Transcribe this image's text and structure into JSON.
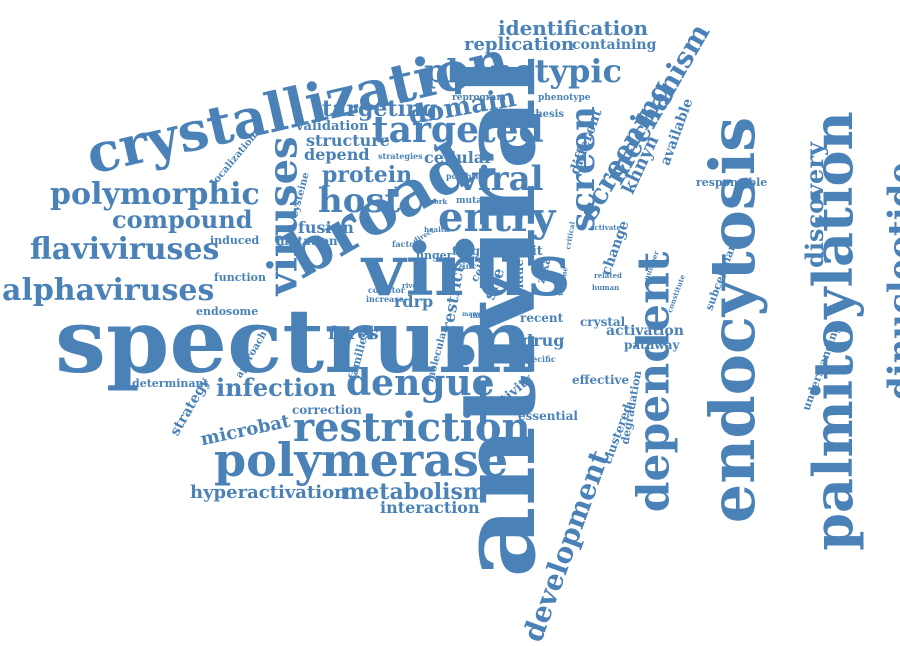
{
  "word_cloud": {
    "color": "#4a82b7",
    "background": "#ffffff",
    "words": [
      {
        "text": "antiviral",
        "orientation": "vertical-up"
      },
      {
        "text": "spectrum",
        "orientation": "horizontal"
      },
      {
        "text": "virus",
        "orientation": "horizontal"
      },
      {
        "text": "broad",
        "orientation": "rotated"
      },
      {
        "text": "endocytosis",
        "orientation": "vertical-up"
      },
      {
        "text": "palmitoylation",
        "orientation": "vertical-up"
      },
      {
        "text": "crystallization",
        "orientation": "horizontal-angled"
      },
      {
        "text": "dependent",
        "orientation": "vertical-up"
      },
      {
        "text": "polymerase",
        "orientation": "horizontal"
      },
      {
        "text": "restriction",
        "orientation": "horizontal"
      },
      {
        "text": "entry",
        "orientation": "horizontal"
      },
      {
        "text": "viruses",
        "orientation": "vertical-up"
      },
      {
        "text": "dengue",
        "orientation": "horizontal"
      },
      {
        "text": "dinucleotide",
        "orientation": "vertical-up"
      },
      {
        "text": "discovery",
        "orientation": "vertical-up"
      },
      {
        "text": "screen",
        "orientation": "vertical-up"
      },
      {
        "text": "screening",
        "orientation": "vertical-up"
      },
      {
        "text": "mechanism",
        "orientation": "vertical-up"
      },
      {
        "text": "development",
        "orientation": "vertical-up"
      },
      {
        "text": "polymorphic",
        "orientation": "horizontal"
      },
      {
        "text": "flaviviruses",
        "orientation": "horizontal"
      },
      {
        "text": "alphaviruses",
        "orientation": "horizontal"
      },
      {
        "text": "compound",
        "orientation": "horizontal"
      },
      {
        "text": "host",
        "orientation": "horizontal"
      },
      {
        "text": "viral",
        "orientation": "horizontal"
      },
      {
        "text": "targeted",
        "orientation": "horizontal"
      },
      {
        "text": "phenotypic",
        "orientation": "horizontal"
      },
      {
        "text": "infection",
        "orientation": "horizontal"
      },
      {
        "text": "metabolism",
        "orientation": "horizontal"
      },
      {
        "text": "hyperactivation",
        "orientation": "horizontal"
      },
      {
        "text": "identification",
        "orientation": "horizontal"
      },
      {
        "text": "replication",
        "orientation": "horizontal"
      },
      {
        "text": "containing",
        "orientation": "horizontal"
      },
      {
        "text": "domain",
        "orientation": "horizontal"
      },
      {
        "text": "targeting",
        "orientation": "horizontal"
      },
      {
        "text": "protein",
        "orientation": "horizontal"
      },
      {
        "text": "microbat",
        "orientation": "horizontal"
      },
      {
        "text": "interaction",
        "orientation": "horizontal"
      },
      {
        "text": "khnyn",
        "orientation": "vertical-up"
      },
      {
        "text": "different",
        "orientation": "vertical-up"
      },
      {
        "text": "available",
        "orientation": "vertical-up"
      },
      {
        "text": "understanding",
        "orientation": "vertical-up"
      },
      {
        "text": "responsible",
        "orientation": "horizontal"
      },
      {
        "text": "subcellular",
        "orientation": "vertical-up"
      },
      {
        "text": "change",
        "orientation": "vertical-up"
      },
      {
        "text": "structure",
        "orientation": "horizontal"
      },
      {
        "text": "validation",
        "orientation": "horizontal"
      },
      {
        "text": "depend",
        "orientation": "horizontal"
      },
      {
        "text": "cellular",
        "orientation": "horizontal"
      },
      {
        "text": "fusion",
        "orientation": "horizontal"
      },
      {
        "text": "mutation",
        "orientation": "horizontal"
      },
      {
        "text": "induced",
        "orientation": "horizontal"
      },
      {
        "text": "function",
        "orientation": "horizontal"
      },
      {
        "text": "endosome",
        "orientation": "horizontal"
      },
      {
        "text": "localization",
        "orientation": "vertical-up"
      },
      {
        "text": "cysteine",
        "orientation": "vertical-up"
      },
      {
        "text": "forest",
        "orientation": "horizontal"
      },
      {
        "text": "rdrp",
        "orientation": "horizontal"
      },
      {
        "text": "restrict",
        "orientation": "vertical-up"
      },
      {
        "text": "site",
        "orientation": "vertical-up"
      },
      {
        "text": "residue",
        "orientation": "vertical-up"
      },
      {
        "text": "recent",
        "orientation": "horizontal"
      },
      {
        "text": "drug",
        "orientation": "horizontal"
      },
      {
        "text": "crystal",
        "orientation": "horizontal"
      },
      {
        "text": "activation",
        "orientation": "horizontal"
      },
      {
        "text": "pathway",
        "orientation": "horizontal"
      },
      {
        "text": "effective",
        "orientation": "horizontal"
      },
      {
        "text": "degradation",
        "orientation": "vertical-up"
      },
      {
        "text": "clustered",
        "orientation": "vertical-up"
      },
      {
        "text": "essential",
        "orientation": "horizontal"
      },
      {
        "text": "activity",
        "orientation": "vertical-up"
      },
      {
        "text": "correction",
        "orientation": "horizontal"
      },
      {
        "text": "determinant",
        "orientation": "horizontal"
      },
      {
        "text": "strategy",
        "orientation": "vertical-up"
      },
      {
        "text": "approach",
        "orientation": "vertical-up"
      },
      {
        "text": "families",
        "orientation": "vertical-up"
      },
      {
        "text": "molecular",
        "orientation": "vertical-up"
      },
      {
        "text": "zika",
        "orientation": "vertical-up"
      },
      {
        "text": "inhibit",
        "orientation": "horizontal"
      },
      {
        "text": "target",
        "orientation": "horizontal"
      },
      {
        "text": "finger",
        "orientation": "horizontal"
      },
      {
        "text": "factor",
        "orientation": "horizontal"
      },
      {
        "text": "cofactor",
        "orientation": "horizontal"
      },
      {
        "text": "increase",
        "orientation": "horizontal"
      },
      {
        "text": "river",
        "orientation": "horizontal"
      },
      {
        "text": "mutant",
        "orientation": "horizontal"
      },
      {
        "text": "potential",
        "orientation": "horizontal"
      },
      {
        "text": "synthesis",
        "orientation": "horizontal"
      },
      {
        "text": "reprogram",
        "orientation": "horizontal"
      },
      {
        "text": "phenotype",
        "orientation": "horizontal"
      },
      {
        "text": "strategies",
        "orientation": "horizontal"
      },
      {
        "text": "concept",
        "orientation": "vertical-up"
      },
      {
        "text": "specific",
        "orientation": "horizontal"
      },
      {
        "text": "vaccine",
        "orientation": "vertical-up"
      },
      {
        "text": "critical",
        "orientation": "vertical-up"
      },
      {
        "text": "activate",
        "orientation": "horizontal"
      },
      {
        "text": "human",
        "orientation": "horizontal"
      },
      {
        "text": "related",
        "orientation": "horizontal"
      },
      {
        "text": "number",
        "orientation": "vertical-up"
      },
      {
        "text": "constitute",
        "orientation": "vertical-up"
      },
      {
        "text": "ifitm",
        "orientation": "horizontal"
      },
      {
        "text": "zinc",
        "orientation": "horizontal"
      },
      {
        "text": "cell",
        "orientation": "vertical-up"
      },
      {
        "text": "addition",
        "orientation": "vertical-up"
      },
      {
        "text": "health",
        "orientation": "horizontal"
      },
      {
        "text": "direct",
        "orientation": "horizontal"
      },
      {
        "text": "work",
        "orientation": "horizontal"
      },
      {
        "text": "many",
        "orientation": "horizontal"
      }
    ]
  }
}
